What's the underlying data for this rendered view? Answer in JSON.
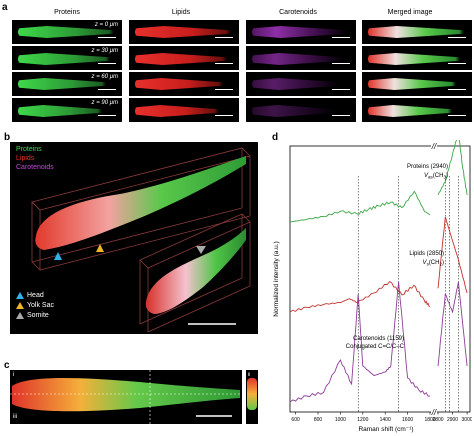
{
  "panel_a": {
    "letter": "a",
    "columns": [
      "Proteins",
      "Lipids",
      "Carotenoids",
      "Merged image"
    ],
    "rows": [
      "z = 0 μm",
      "z = 30 μm",
      "z = 60 μm",
      "z = 90 μm"
    ],
    "colors": {
      "proteins": "#3fd84a",
      "lipids": "#e8302c",
      "carotenoids": "#b23ad0"
    }
  },
  "panel_b": {
    "letter": "b",
    "channel_labels": [
      "Proteins",
      "Lipids",
      "Carotenoids"
    ],
    "markers": [
      {
        "label": "Head",
        "color": "#2fb3e8"
      },
      {
        "label": "Yolk Sac",
        "color": "#f0b429"
      },
      {
        "label": "Somite",
        "color": "#a9a9a9"
      }
    ]
  },
  "panel_c": {
    "letter": "c",
    "sub_labels": [
      "i",
      "ii",
      "iii"
    ]
  },
  "panel_d": {
    "letter": "d",
    "ylabel": "Normalized intensity (a.u.)",
    "xlabel": "Raman shift (cm⁻¹)",
    "xticks": [
      "600",
      "800",
      "1000",
      "1200",
      "1400",
      "1600",
      "1800",
      "2800",
      "2900",
      "3000"
    ],
    "annotations": {
      "proteins": {
        "line1": "Proteins (2940)",
        "line2": "V",
        "sub": "as",
        "line2b": "(CH",
        "sub2": "3",
        "end": ")"
      },
      "lipids": {
        "line1": "Lipids (2850)",
        "line2": "V",
        "sub": "s",
        "line2b": "(CH",
        "sub2": "2",
        "end": ")"
      },
      "carotenoids": {
        "line1": "Carotenoids (1159)",
        "line2": "Conjugated C=C/C–C"
      }
    },
    "axis_break": "//"
  },
  "chart_data": {
    "type": "line",
    "title": "",
    "xlabel": "Raman shift (cm⁻¹)",
    "ylabel": "Normalized intensity (a.u.)",
    "xlim": [
      550,
      3020
    ],
    "x_break": [
      1800,
      2800
    ],
    "series": [
      {
        "name": "Proteins",
        "color": "#3aa845",
        "x": [
          550,
          700,
          850,
          1000,
          1150,
          1250,
          1340,
          1450,
          1550,
          1660,
          1750,
          1800,
          2800,
          2850,
          2900,
          2940,
          2970,
          3000
        ],
        "y": [
          0.0,
          0.03,
          0.06,
          0.12,
          0.09,
          0.14,
          0.18,
          0.22,
          0.16,
          0.34,
          0.12,
          0.08,
          0.3,
          0.45,
          0.75,
          1.0,
          0.6,
          0.3
        ]
      },
      {
        "name": "Lipids",
        "color": "#c0322e",
        "x": [
          550,
          700,
          850,
          1000,
          1080,
          1150,
          1300,
          1440,
          1550,
          1655,
          1750,
          1800,
          2800,
          2850,
          2880,
          2940,
          3000
        ],
        "y": [
          0.0,
          0.05,
          0.08,
          0.1,
          0.14,
          0.1,
          0.2,
          0.32,
          0.18,
          0.28,
          0.12,
          0.06,
          0.25,
          1.0,
          0.85,
          0.55,
          0.2
        ]
      },
      {
        "name": "Carotenoids",
        "color": "#8e3c97",
        "x": [
          550,
          700,
          850,
          1000,
          1100,
          1159,
          1200,
          1300,
          1400,
          1450,
          1520,
          1600,
          1700,
          1800,
          2800,
          2850,
          2900,
          2940,
          3000
        ],
        "y": [
          0.0,
          0.05,
          0.08,
          0.35,
          0.15,
          0.9,
          0.3,
          0.22,
          0.25,
          0.3,
          1.0,
          0.2,
          0.1,
          0.05,
          0.3,
          0.9,
          0.75,
          1.0,
          0.3
        ]
      }
    ]
  }
}
